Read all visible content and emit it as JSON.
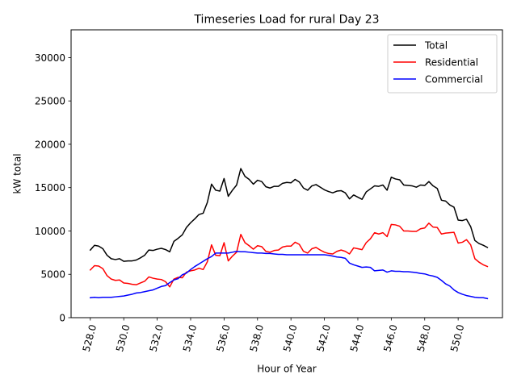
{
  "chart_data": {
    "type": "line",
    "title": "Timeseries Load for rural   Day 23",
    "xlabel": "Hour of Year",
    "ylabel": "kW total",
    "xlim": [
      526.85,
      552.65
    ],
    "ylim": [
      0,
      33200
    ],
    "xticks": [
      528,
      530,
      532,
      534,
      536,
      538,
      540,
      542,
      544,
      546,
      548,
      550
    ],
    "xtick_labels": [
      "528.0",
      "530.0",
      "532.0",
      "534.0",
      "536.0",
      "538.0",
      "540.0",
      "542.0",
      "544.0",
      "546.0",
      "548.0",
      "550.0"
    ],
    "yticks": [
      0,
      5000,
      10000,
      15000,
      20000,
      25000,
      30000
    ],
    "ytick_labels": [
      "0",
      "5000",
      "10000",
      "15000",
      "20000",
      "25000",
      "30000"
    ],
    "grid": false,
    "legend_position": "top-right",
    "x_start": 528,
    "x_step": 0.25,
    "series": [
      {
        "name": "Total",
        "color": "#000000",
        "values": [
          7800,
          8350,
          8250,
          7950,
          7200,
          6800,
          6700,
          6800,
          6500,
          6550,
          6550,
          6650,
          6900,
          7200,
          7800,
          7750,
          7900,
          8000,
          7850,
          7600,
          8800,
          9150,
          9550,
          10400,
          10950,
          11400,
          11900,
          12050,
          13300,
          15400,
          14700,
          14600,
          16050,
          14000,
          14700,
          15300,
          17200,
          16300,
          15950,
          15400,
          15850,
          15700,
          15100,
          14950,
          15150,
          15150,
          15500,
          15600,
          15550,
          15950,
          15650,
          14950,
          14700,
          15200,
          15350,
          15050,
          14750,
          14550,
          14400,
          14600,
          14650,
          14400,
          13700,
          14150,
          13900,
          13650,
          14500,
          14850,
          15200,
          15150,
          15300,
          14700,
          16200,
          16000,
          15900,
          15300,
          15250,
          15200,
          15050,
          15300,
          15250,
          15700,
          15200,
          14900,
          13550,
          13450,
          13000,
          12750,
          11250,
          11200,
          11350,
          10500,
          8900,
          8550,
          8350,
          8100
        ]
      },
      {
        "name": "Residential",
        "color": "#ff0000",
        "values": [
          5500,
          6000,
          5950,
          5650,
          4850,
          4450,
          4300,
          4350,
          4000,
          3950,
          3850,
          3800,
          4000,
          4200,
          4700,
          4550,
          4450,
          4400,
          4150,
          3550,
          4450,
          4650,
          4600,
          5250,
          5400,
          5500,
          5700,
          5550,
          6450,
          8400,
          7200,
          7150,
          8650,
          6550,
          7100,
          7550,
          9600,
          8650,
          8300,
          7900,
          8300,
          8200,
          7650,
          7550,
          7750,
          7800,
          8150,
          8250,
          8250,
          8700,
          8450,
          7650,
          7450,
          7950,
          8100,
          7800,
          7550,
          7400,
          7350,
          7650,
          7800,
          7650,
          7350,
          8050,
          7950,
          7850,
          8650,
          9100,
          9800,
          9650,
          9800,
          9350,
          10750,
          10700,
          10550,
          10000,
          10000,
          9950,
          9950,
          10250,
          10350,
          10900,
          10450,
          10400,
          9650,
          9750,
          9800,
          9850,
          8600,
          8700,
          9000,
          8400,
          6800,
          6400,
          6100,
          5900
        ]
      },
      {
        "name": "Commercial",
        "color": "#0000ff",
        "values": [
          2300,
          2350,
          2300,
          2350,
          2350,
          2350,
          2400,
          2450,
          2500,
          2600,
          2700,
          2850,
          2900,
          3000,
          3100,
          3200,
          3400,
          3600,
          3700,
          4050,
          4350,
          4500,
          4950,
          5150,
          5550,
          5900,
          6200,
          6500,
          6800,
          7050,
          7450,
          7450,
          7450,
          7450,
          7550,
          7650,
          7600,
          7600,
          7550,
          7500,
          7450,
          7450,
          7400,
          7400,
          7350,
          7300,
          7300,
          7250,
          7250,
          7250,
          7250,
          7250,
          7250,
          7250,
          7250,
          7250,
          7250,
          7200,
          7100,
          7000,
          6950,
          6850,
          6300,
          6100,
          5950,
          5800,
          5850,
          5800,
          5400,
          5450,
          5500,
          5250,
          5400,
          5350,
          5350,
          5300,
          5300,
          5250,
          5200,
          5100,
          5050,
          4900,
          4800,
          4650,
          4300,
          3900,
          3650,
          3200,
          2900,
          2700,
          2550,
          2450,
          2350,
          2300,
          2300,
          2200
        ]
      }
    ]
  }
}
